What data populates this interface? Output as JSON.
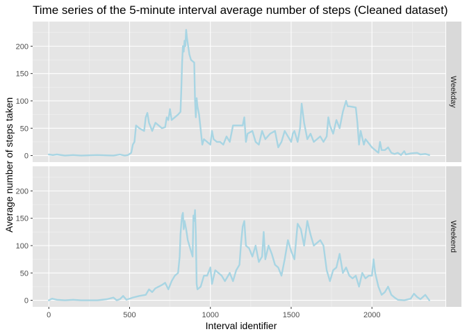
{
  "chart_data": {
    "type": "line",
    "title": "Time series of the 5-minute interval average number of steps (Cleaned dataset)",
    "xlabel": "Interval identifier",
    "ylabel": "Average number of steps taken",
    "xlim": [
      -100,
      2455
    ],
    "ylim": [
      -12,
      245
    ],
    "x_ticks": [
      0,
      500,
      1000,
      1500,
      2000
    ],
    "y_ticks": [
      0,
      50,
      100,
      150,
      200
    ],
    "grid": true,
    "line_color": "#a8d5e3",
    "panel_background": "#e5e5e5",
    "strip_background": "#d9d9d9",
    "series": [
      {
        "name": "Weekday",
        "points": [
          [
            0,
            2
          ],
          [
            25,
            1
          ],
          [
            50,
            2
          ],
          [
            100,
            0
          ],
          [
            150,
            1
          ],
          [
            200,
            0
          ],
          [
            300,
            1
          ],
          [
            400,
            0
          ],
          [
            440,
            2
          ],
          [
            470,
            0
          ],
          [
            490,
            1
          ],
          [
            500,
            3
          ],
          [
            510,
            5
          ],
          [
            520,
            20
          ],
          [
            530,
            25
          ],
          [
            540,
            55
          ],
          [
            560,
            50
          ],
          [
            590,
            45
          ],
          [
            600,
            70
          ],
          [
            610,
            78
          ],
          [
            620,
            60
          ],
          [
            640,
            45
          ],
          [
            660,
            60
          ],
          [
            680,
            55
          ],
          [
            700,
            50
          ],
          [
            720,
            52
          ],
          [
            730,
            70
          ],
          [
            740,
            65
          ],
          [
            750,
            85
          ],
          [
            760,
            65
          ],
          [
            780,
            70
          ],
          [
            800,
            75
          ],
          [
            815,
            80
          ],
          [
            820,
            120
          ],
          [
            825,
            170
          ],
          [
            830,
            200
          ],
          [
            835,
            190
          ],
          [
            840,
            210
          ],
          [
            845,
            200
          ],
          [
            850,
            230
          ],
          [
            855,
            215
          ],
          [
            860,
            205
          ],
          [
            870,
            185
          ],
          [
            880,
            175
          ],
          [
            900,
            170
          ],
          [
            905,
            100
          ],
          [
            910,
            70
          ],
          [
            915,
            105
          ],
          [
            920,
            90
          ],
          [
            930,
            75
          ],
          [
            950,
            20
          ],
          [
            960,
            30
          ],
          [
            980,
            25
          ],
          [
            1000,
            20
          ],
          [
            1010,
            45
          ],
          [
            1020,
            30
          ],
          [
            1040,
            25
          ],
          [
            1060,
            25
          ],
          [
            1080,
            20
          ],
          [
            1100,
            35
          ],
          [
            1120,
            25
          ],
          [
            1140,
            55
          ],
          [
            1180,
            55
          ],
          [
            1200,
            55
          ],
          [
            1210,
            70
          ],
          [
            1220,
            25
          ],
          [
            1230,
            40
          ],
          [
            1260,
            45
          ],
          [
            1280,
            25
          ],
          [
            1300,
            20
          ],
          [
            1320,
            45
          ],
          [
            1340,
            30
          ],
          [
            1370,
            40
          ],
          [
            1400,
            45
          ],
          [
            1420,
            15
          ],
          [
            1440,
            25
          ],
          [
            1460,
            45
          ],
          [
            1480,
            35
          ],
          [
            1500,
            25
          ],
          [
            1510,
            40
          ],
          [
            1520,
            45
          ],
          [
            1540,
            25
          ],
          [
            1555,
            50
          ],
          [
            1565,
            95
          ],
          [
            1580,
            60
          ],
          [
            1600,
            30
          ],
          [
            1620,
            40
          ],
          [
            1640,
            25
          ],
          [
            1660,
            30
          ],
          [
            1680,
            35
          ],
          [
            1700,
            25
          ],
          [
            1720,
            35
          ],
          [
            1730,
            70
          ],
          [
            1740,
            55
          ],
          [
            1760,
            40
          ],
          [
            1780,
            65
          ],
          [
            1800,
            50
          ],
          [
            1820,
            80
          ],
          [
            1840,
            100
          ],
          [
            1850,
            90
          ],
          [
            1860,
            90
          ],
          [
            1900,
            88
          ],
          [
            1910,
            60
          ],
          [
            1920,
            20
          ],
          [
            1930,
            45
          ],
          [
            1950,
            20
          ],
          [
            1960,
            30
          ],
          [
            2000,
            15
          ],
          [
            2020,
            10
          ],
          [
            2040,
            5
          ],
          [
            2050,
            25
          ],
          [
            2060,
            10
          ],
          [
            2080,
            10
          ],
          [
            2100,
            15
          ],
          [
            2120,
            5
          ],
          [
            2140,
            3
          ],
          [
            2160,
            5
          ],
          [
            2180,
            1
          ],
          [
            2200,
            8
          ],
          [
            2210,
            2
          ],
          [
            2240,
            4
          ],
          [
            2280,
            5
          ],
          [
            2300,
            2
          ],
          [
            2330,
            3
          ],
          [
            2355,
            1
          ]
        ]
      },
      {
        "name": "Weekend",
        "points": [
          [
            0,
            0
          ],
          [
            20,
            3
          ],
          [
            50,
            1
          ],
          [
            100,
            0
          ],
          [
            150,
            1
          ],
          [
            200,
            0
          ],
          [
            300,
            0
          ],
          [
            360,
            2
          ],
          [
            400,
            5
          ],
          [
            420,
            0
          ],
          [
            440,
            2
          ],
          [
            460,
            8
          ],
          [
            480,
            1
          ],
          [
            500,
            3
          ],
          [
            520,
            5
          ],
          [
            560,
            8
          ],
          [
            600,
            10
          ],
          [
            620,
            20
          ],
          [
            640,
            15
          ],
          [
            660,
            22
          ],
          [
            700,
            28
          ],
          [
            720,
            32
          ],
          [
            740,
            20
          ],
          [
            760,
            35
          ],
          [
            780,
            45
          ],
          [
            800,
            50
          ],
          [
            810,
            80
          ],
          [
            815,
            120
          ],
          [
            820,
            140
          ],
          [
            825,
            155
          ],
          [
            830,
            160
          ],
          [
            835,
            130
          ],
          [
            840,
            145
          ],
          [
            850,
            130
          ],
          [
            860,
            110
          ],
          [
            870,
            100
          ],
          [
            880,
            90
          ],
          [
            890,
            80
          ],
          [
            895,
            155
          ],
          [
            900,
            145
          ],
          [
            905,
            165
          ],
          [
            910,
            120
          ],
          [
            915,
            30
          ],
          [
            920,
            20
          ],
          [
            940,
            25
          ],
          [
            960,
            45
          ],
          [
            980,
            45
          ],
          [
            1000,
            60
          ],
          [
            1010,
            30
          ],
          [
            1030,
            55
          ],
          [
            1050,
            50
          ],
          [
            1070,
            45
          ],
          [
            1090,
            35
          ],
          [
            1100,
            40
          ],
          [
            1120,
            50
          ],
          [
            1140,
            35
          ],
          [
            1160,
            55
          ],
          [
            1180,
            65
          ],
          [
            1190,
            105
          ],
          [
            1200,
            135
          ],
          [
            1210,
            145
          ],
          [
            1220,
            100
          ],
          [
            1240,
            95
          ],
          [
            1260,
            80
          ],
          [
            1280,
            100
          ],
          [
            1300,
            70
          ],
          [
            1320,
            80
          ],
          [
            1330,
            125
          ],
          [
            1340,
            75
          ],
          [
            1360,
            100
          ],
          [
            1380,
            85
          ],
          [
            1400,
            65
          ],
          [
            1420,
            60
          ],
          [
            1440,
            45
          ],
          [
            1460,
            75
          ],
          [
            1480,
            110
          ],
          [
            1500,
            90
          ],
          [
            1520,
            75
          ],
          [
            1540,
            140
          ],
          [
            1560,
            130
          ],
          [
            1580,
            100
          ],
          [
            1600,
            145
          ],
          [
            1620,
            120
          ],
          [
            1640,
            100
          ],
          [
            1660,
            105
          ],
          [
            1680,
            110
          ],
          [
            1700,
            100
          ],
          [
            1720,
            55
          ],
          [
            1740,
            35
          ],
          [
            1760,
            55
          ],
          [
            1780,
            60
          ],
          [
            1800,
            85
          ],
          [
            1820,
            50
          ],
          [
            1840,
            60
          ],
          [
            1860,
            45
          ],
          [
            1880,
            40
          ],
          [
            1900,
            45
          ],
          [
            1920,
            25
          ],
          [
            1940,
            50
          ],
          [
            1960,
            40
          ],
          [
            1980,
            45
          ],
          [
            2000,
            45
          ],
          [
            2010,
            75
          ],
          [
            2020,
            50
          ],
          [
            2040,
            25
          ],
          [
            2060,
            10
          ],
          [
            2080,
            15
          ],
          [
            2100,
            25
          ],
          [
            2120,
            10
          ],
          [
            2140,
            5
          ],
          [
            2160,
            1
          ],
          [
            2200,
            0
          ],
          [
            2240,
            3
          ],
          [
            2260,
            12
          ],
          [
            2280,
            6
          ],
          [
            2300,
            2
          ],
          [
            2330,
            10
          ],
          [
            2355,
            0
          ]
        ]
      }
    ]
  }
}
